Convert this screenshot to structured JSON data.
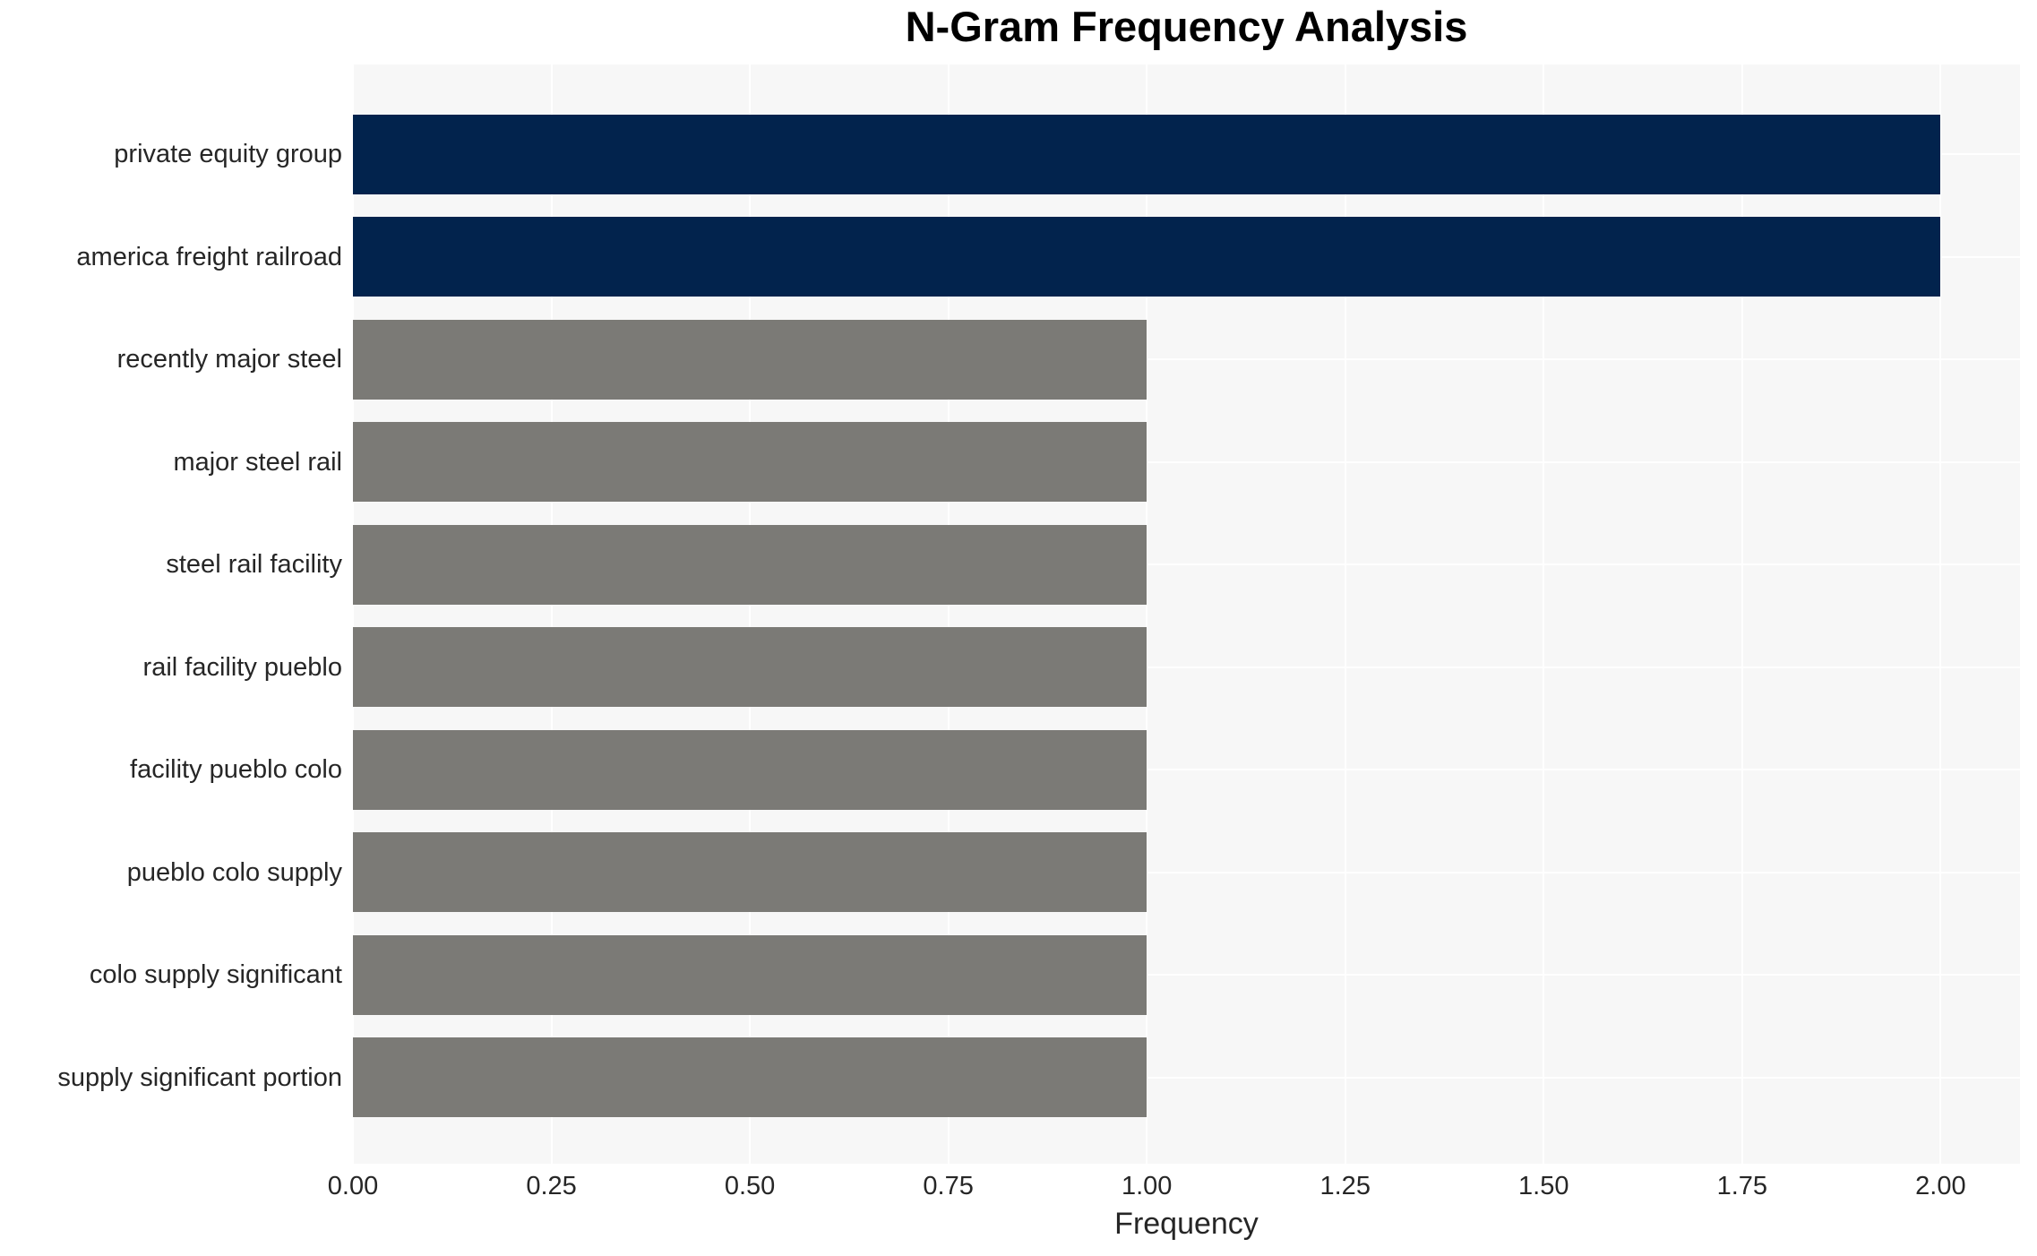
{
  "chart_data": {
    "type": "bar",
    "orientation": "horizontal",
    "title": "N-Gram Frequency Analysis",
    "xlabel": "Frequency",
    "ylabel": "",
    "categories": [
      "private equity group",
      "america freight railroad",
      "recently major steel",
      "major steel rail",
      "steel rail facility",
      "rail facility pueblo",
      "facility pueblo colo",
      "pueblo colo supply",
      "colo supply significant",
      "supply significant portion"
    ],
    "values": [
      2,
      2,
      1,
      1,
      1,
      1,
      1,
      1,
      1,
      1
    ],
    "bar_colors": [
      "#02234d",
      "#02234d",
      "#7b7a76",
      "#7b7a76",
      "#7b7a76",
      "#7b7a76",
      "#7b7a76",
      "#7b7a76",
      "#7b7a76",
      "#7b7a76"
    ],
    "xlim": [
      0,
      2.1
    ],
    "xtick_values": [
      0,
      0.25,
      0.5,
      0.75,
      1.0,
      1.25,
      1.5,
      1.75,
      2.0
    ],
    "xtick_labels": [
      "0.00",
      "0.25",
      "0.50",
      "0.75",
      "1.00",
      "1.25",
      "1.50",
      "1.75",
      "2.00"
    ],
    "grid": true,
    "legend": false,
    "colors": {
      "highlight_bar": "#02234d",
      "default_bar": "#7b7a76",
      "plot_background": "#f7f7f7",
      "gridline": "#ffffff",
      "tick_text": "#262626",
      "title_text": "#000000"
    }
  }
}
